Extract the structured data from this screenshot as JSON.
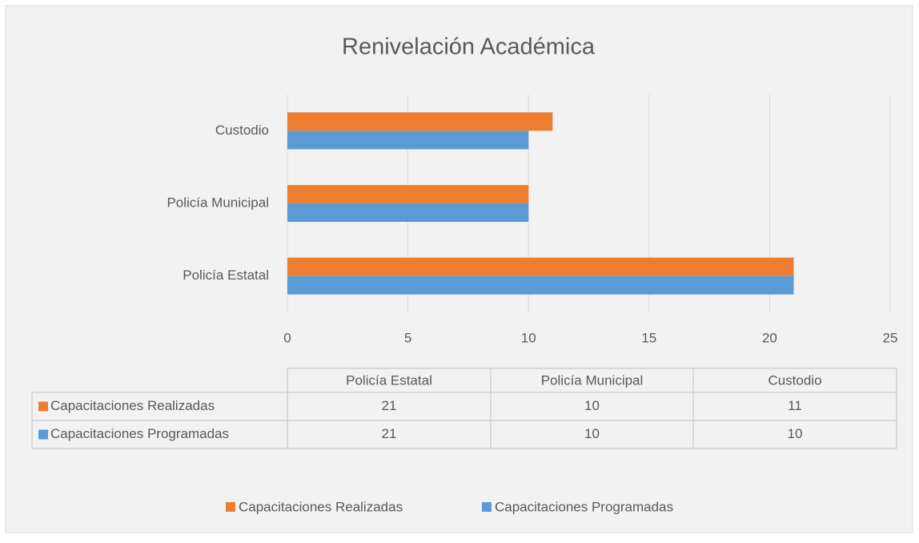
{
  "chart_data": {
    "type": "bar",
    "orientation": "horizontal",
    "title": "Renivelación Académica",
    "categories": [
      "Policía Estatal",
      "Policía Municipal",
      "Custodio"
    ],
    "series": [
      {
        "name": "Capacitaciones Realizadas",
        "color": "#ed7d31",
        "values": [
          21,
          10,
          11
        ]
      },
      {
        "name": "Capacitaciones Programadas",
        "color": "#5b9bd5",
        "values": [
          21,
          10,
          10
        ]
      }
    ],
    "xlim": [
      0,
      25
    ],
    "xticks": [
      0,
      5,
      10,
      15,
      20,
      25
    ],
    "grid": true,
    "data_table": true,
    "legend": "bottom"
  }
}
